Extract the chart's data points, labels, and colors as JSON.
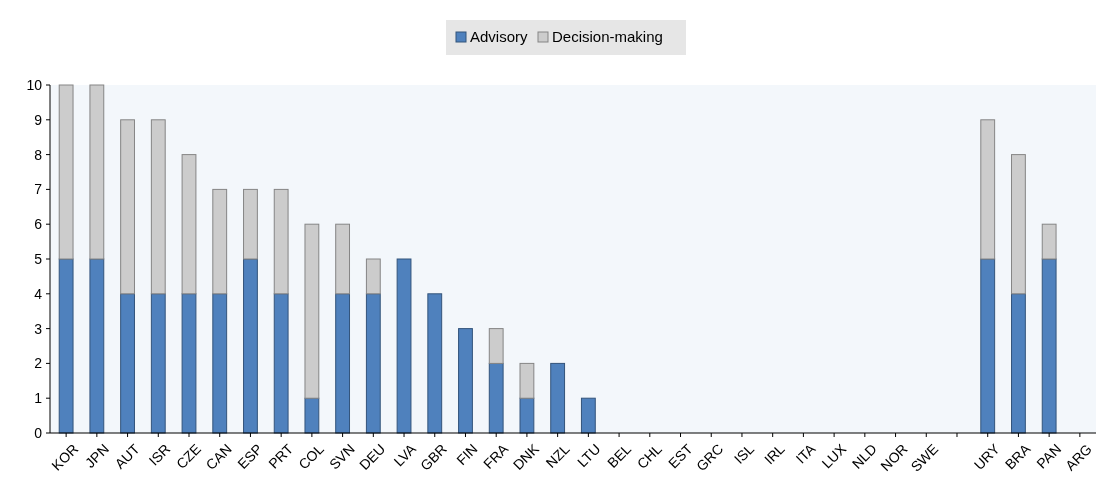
{
  "chart_data": {
    "type": "bar",
    "stacked": true,
    "legend": "top",
    "grid": false,
    "categories": [
      "KOR",
      "JPN",
      "AUT",
      "ISR",
      "CZE",
      "CAN",
      "ESP",
      "PRT",
      "COL",
      "SVN",
      "DEU",
      "LVA",
      "GBR",
      "FIN",
      "FRA",
      "DNK",
      "NZL",
      "LTU",
      "BEL",
      "CHL",
      "EST",
      "GRC",
      "ISL",
      "IRL",
      "ITA",
      "LUX",
      "NLD",
      "NOR",
      "SWE",
      null,
      "URY",
      "BRA",
      "PAN",
      "ARG"
    ],
    "series": [
      {
        "name": "Advisory",
        "color": "#4f81bd",
        "values": [
          5,
          5,
          4,
          4,
          4,
          4,
          5,
          4,
          1,
          4,
          4,
          5,
          4,
          3,
          2,
          1,
          2,
          1,
          0,
          0,
          0,
          0,
          0,
          0,
          0,
          0,
          0,
          0,
          0,
          null,
          5,
          4,
          5,
          0
        ]
      },
      {
        "name": "Decision-making",
        "color": "#cccccc",
        "values": [
          5,
          5,
          5,
          5,
          4,
          3,
          2,
          3,
          5,
          2,
          1,
          0,
          0,
          0,
          1,
          1,
          0,
          0,
          0,
          0,
          0,
          0,
          0,
          0,
          0,
          0,
          0,
          0,
          0,
          null,
          4,
          4,
          1,
          0
        ]
      }
    ],
    "ylim": [
      0,
      10
    ],
    "yticks": [
      0,
      1,
      2,
      3,
      4,
      5,
      6,
      7,
      8,
      9,
      10
    ]
  }
}
